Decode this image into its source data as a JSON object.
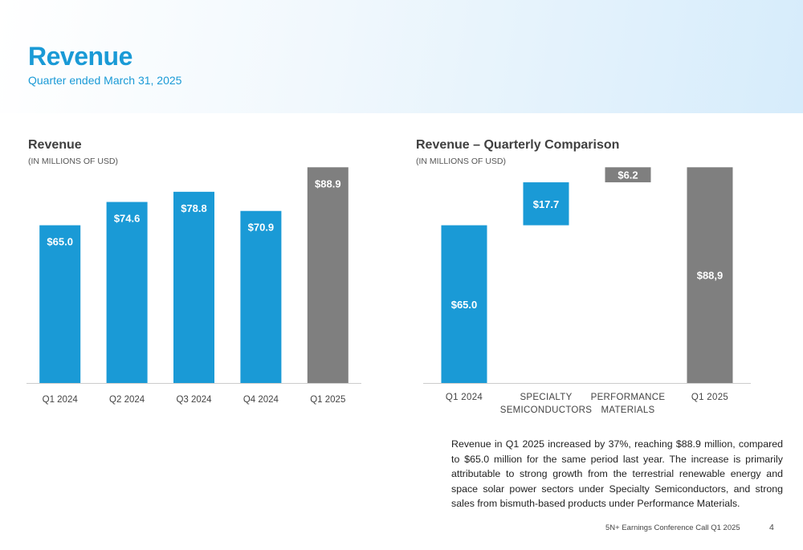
{
  "header": {
    "title": "Revenue",
    "subtitle": "Quarter ended March 31, 2025"
  },
  "colors": {
    "accent": "#1a9ad6",
    "bar_blue": "#1a9ad6",
    "bar_gray": "#7f7f7f"
  },
  "charts": {
    "left": {
      "title": "Revenue",
      "units": "(IN MILLIONS OF USD)"
    },
    "right": {
      "title": "Revenue – Quarterly Comparison",
      "units": "(IN MILLIONS OF USD)"
    }
  },
  "chart_data": [
    {
      "type": "bar",
      "title": "Revenue",
      "subtitle": "(IN MILLIONS OF USD)",
      "categories": [
        "Q1 2024",
        "Q2 2024",
        "Q3 2024",
        "Q4 2024",
        "Q1 2025"
      ],
      "values": [
        65.0,
        74.6,
        78.8,
        70.9,
        88.9
      ],
      "labels": [
        "$65.0",
        "$74.6",
        "$78.8",
        "$70.9",
        "$88.9"
      ],
      "colors": [
        "#1a9ad6",
        "#1a9ad6",
        "#1a9ad6",
        "#1a9ad6",
        "#7f7f7f"
      ],
      "ylim": [
        0,
        90
      ],
      "grid": false,
      "legend": "none"
    },
    {
      "type": "bar",
      "subtype": "waterfall",
      "title": "Revenue – Quarterly Comparison",
      "subtitle": "(IN MILLIONS OF USD)",
      "categories": [
        "Q1 2024",
        "SPECIALTY SEMICONDUCTORS",
        "PERFORMANCE MATERIALS",
        "Q1 2025"
      ],
      "category_lines": [
        [
          "Q1 2024"
        ],
        [
          "SPECIALTY",
          "SEMICONDUCTORS"
        ],
        [
          "PERFORMANCE",
          "MATERIALS"
        ],
        [
          "Q1 2025"
        ]
      ],
      "bars": [
        {
          "kind": "total",
          "start": 0,
          "end": 65.0,
          "label": "$65.0",
          "color": "#1a9ad6"
        },
        {
          "kind": "delta",
          "start": 65.0,
          "end": 82.7,
          "label": "$17.7",
          "color": "#1a9ad6"
        },
        {
          "kind": "delta",
          "start": 82.7,
          "end": 88.9,
          "label": "$6.2",
          "color": "#7f7f7f"
        },
        {
          "kind": "total",
          "start": 0,
          "end": 88.9,
          "label": "$88,9",
          "color": "#7f7f7f"
        }
      ],
      "ylim": [
        0,
        90
      ],
      "grid": false,
      "legend": "none"
    }
  ],
  "body_text": "Revenue in Q1 2025 increased by 37%, reaching $88.9 million, compared to $65.0 million for the same period last year. The increase is primarily attributable to strong growth from the terrestrial renewable energy and space solar power sectors under Specialty Semiconductors, and strong sales from bismuth-based products under Performance Materials.",
  "footer": {
    "event": "5N+ Earnings Conference Call Q1 2025",
    "page": "4"
  }
}
